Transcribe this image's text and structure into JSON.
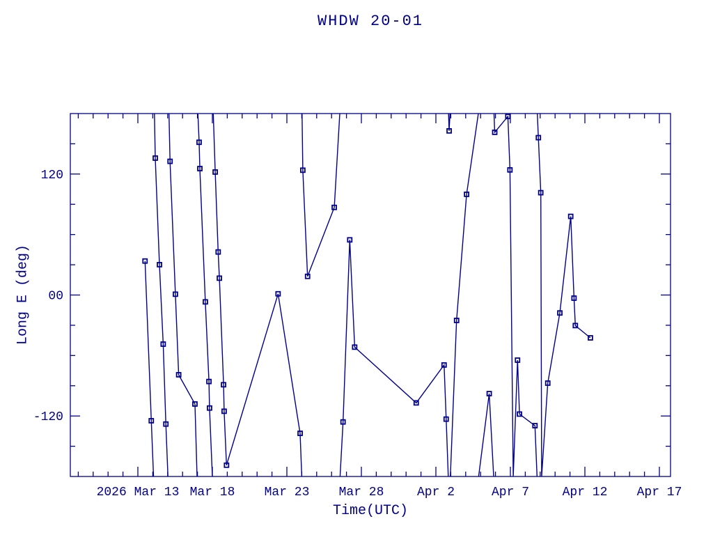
{
  "title": "WHDW 20-01",
  "chart_data": {
    "type": "line",
    "title": "WHDW 20-01",
    "xlabel": "Time(UTC)",
    "ylabel": "Long E (deg)",
    "x_unit": "days since 2026 Mar 13 00:00 UTC",
    "x_range_days": [
      -4.53,
      35.75
    ],
    "ylim": [
      -180,
      180
    ],
    "y_tick_step_deg": 30,
    "x_minor_tick_step_days": 1,
    "grid": "off",
    "legend": "none",
    "line_color": "#00008B",
    "text_color": "#00008B",
    "background": "#ffffff",
    "marker_style": "open-square",
    "y_major_ticks": [
      {
        "value": 120,
        "label": "120"
      },
      {
        "value": 0,
        "label": "00"
      },
      {
        "value": -120,
        "label": "-120"
      }
    ],
    "x_major_ticks": [
      {
        "day": 0,
        "label": "2026 Mar 13"
      },
      {
        "day": 5,
        "label": "Mar 18"
      },
      {
        "day": 10,
        "label": "Mar 23"
      },
      {
        "day": 15,
        "label": "Mar 28"
      },
      {
        "day": 20,
        "label": "Apr 2"
      },
      {
        "day": 25,
        "label": "Apr 7"
      },
      {
        "day": 30,
        "label": "Apr 12"
      },
      {
        "day": 35,
        "label": "Apr 17"
      }
    ],
    "series_note": "single series; segments split where longitude wraps at +/-180 deg; third element 1 = data point with square marker, 0 = edge-of-range vertex",
    "segments": [
      [
        [
          0.48,
          33.7,
          1
        ],
        [
          0.9,
          -124.7,
          1
        ],
        [
          1.05,
          -180,
          0
        ]
      ],
      [
        [
          1.11,
          180,
          0
        ],
        [
          1.17,
          135.8,
          1
        ],
        [
          1.45,
          30.1,
          1
        ],
        [
          1.7,
          -48.7,
          1
        ],
        [
          1.88,
          -128.0,
          1
        ],
        [
          2.02,
          -180,
          0
        ]
      ],
      [
        [
          2.09,
          180,
          0
        ],
        [
          2.16,
          132.6,
          1
        ],
        [
          2.52,
          0.8,
          1
        ],
        [
          2.74,
          -79.1,
          1
        ],
        [
          3.83,
          -108.1,
          1
        ],
        [
          3.97,
          -180,
          0
        ]
      ],
      [
        [
          4.03,
          180,
          0
        ],
        [
          4.11,
          151.5,
          1
        ],
        [
          4.16,
          125.4,
          1
        ],
        [
          4.53,
          -6.8,
          1
        ],
        [
          4.77,
          -85.8,
          1
        ],
        [
          4.81,
          -112.1,
          1
        ],
        [
          5.0,
          -180,
          0
        ]
      ],
      [
        [
          5.06,
          180,
          0
        ],
        [
          5.19,
          122.0,
          1
        ],
        [
          5.39,
          42.7,
          1
        ],
        [
          5.47,
          16.7,
          1
        ],
        [
          5.75,
          -89.0,
          1
        ],
        [
          5.79,
          -115.3,
          1
        ],
        [
          5.95,
          -168.8,
          1
        ],
        [
          9.41,
          1.2,
          1
        ],
        [
          10.89,
          -137.2,
          1
        ],
        [
          11.0,
          -180,
          0
        ]
      ],
      [
        [
          11.02,
          180,
          0
        ],
        [
          11.07,
          123.8,
          1
        ],
        [
          11.39,
          18.5,
          1
        ],
        [
          13.18,
          86.9,
          1
        ],
        [
          13.55,
          180,
          0
        ]
      ],
      [
        [
          13.57,
          -180,
          0
        ],
        [
          13.77,
          -125.9,
          1
        ],
        [
          14.22,
          54.7,
          1
        ],
        [
          14.55,
          -51.7,
          1
        ],
        [
          18.68,
          -107.0,
          1
        ],
        [
          20.55,
          -69.4,
          1
        ],
        [
          20.69,
          -123.1,
          1
        ],
        [
          20.83,
          -180,
          0
        ]
      ],
      [
        [
          20.85,
          180,
          0
        ],
        [
          20.89,
          162.8,
          1
        ],
        [
          20.95,
          180,
          0
        ]
      ],
      [
        [
          20.97,
          -180,
          0
        ],
        [
          21.39,
          -25.2,
          1
        ],
        [
          22.06,
          99.9,
          1
        ],
        [
          22.85,
          180,
          0
        ]
      ],
      [
        [
          22.87,
          -180,
          0
        ],
        [
          23.58,
          -97.8,
          1
        ],
        [
          23.88,
          -180,
          0
        ]
      ],
      [
        [
          23.9,
          180,
          0
        ],
        [
          23.95,
          161.4,
          1
        ],
        [
          24.83,
          177.1,
          1
        ],
        [
          24.97,
          124.1,
          1
        ],
        [
          25.19,
          -180,
          0
        ],
        [
          25.48,
          -64.6,
          1
        ],
        [
          25.61,
          -118.1,
          1
        ],
        [
          26.65,
          -129.6,
          1
        ],
        [
          26.79,
          -180,
          0
        ]
      ],
      [
        [
          26.81,
          180,
          0
        ],
        [
          26.88,
          156.1,
          1
        ],
        [
          27.04,
          101.5,
          1
        ],
        [
          27.1,
          -180,
          0
        ],
        [
          27.51,
          -87.4,
          1
        ],
        [
          28.32,
          -17.8,
          1
        ],
        [
          29.05,
          78.0,
          1
        ],
        [
          29.27,
          -3.1,
          1
        ],
        [
          29.36,
          -30.3,
          1
        ],
        [
          30.37,
          -42.5,
          1
        ]
      ]
    ]
  }
}
